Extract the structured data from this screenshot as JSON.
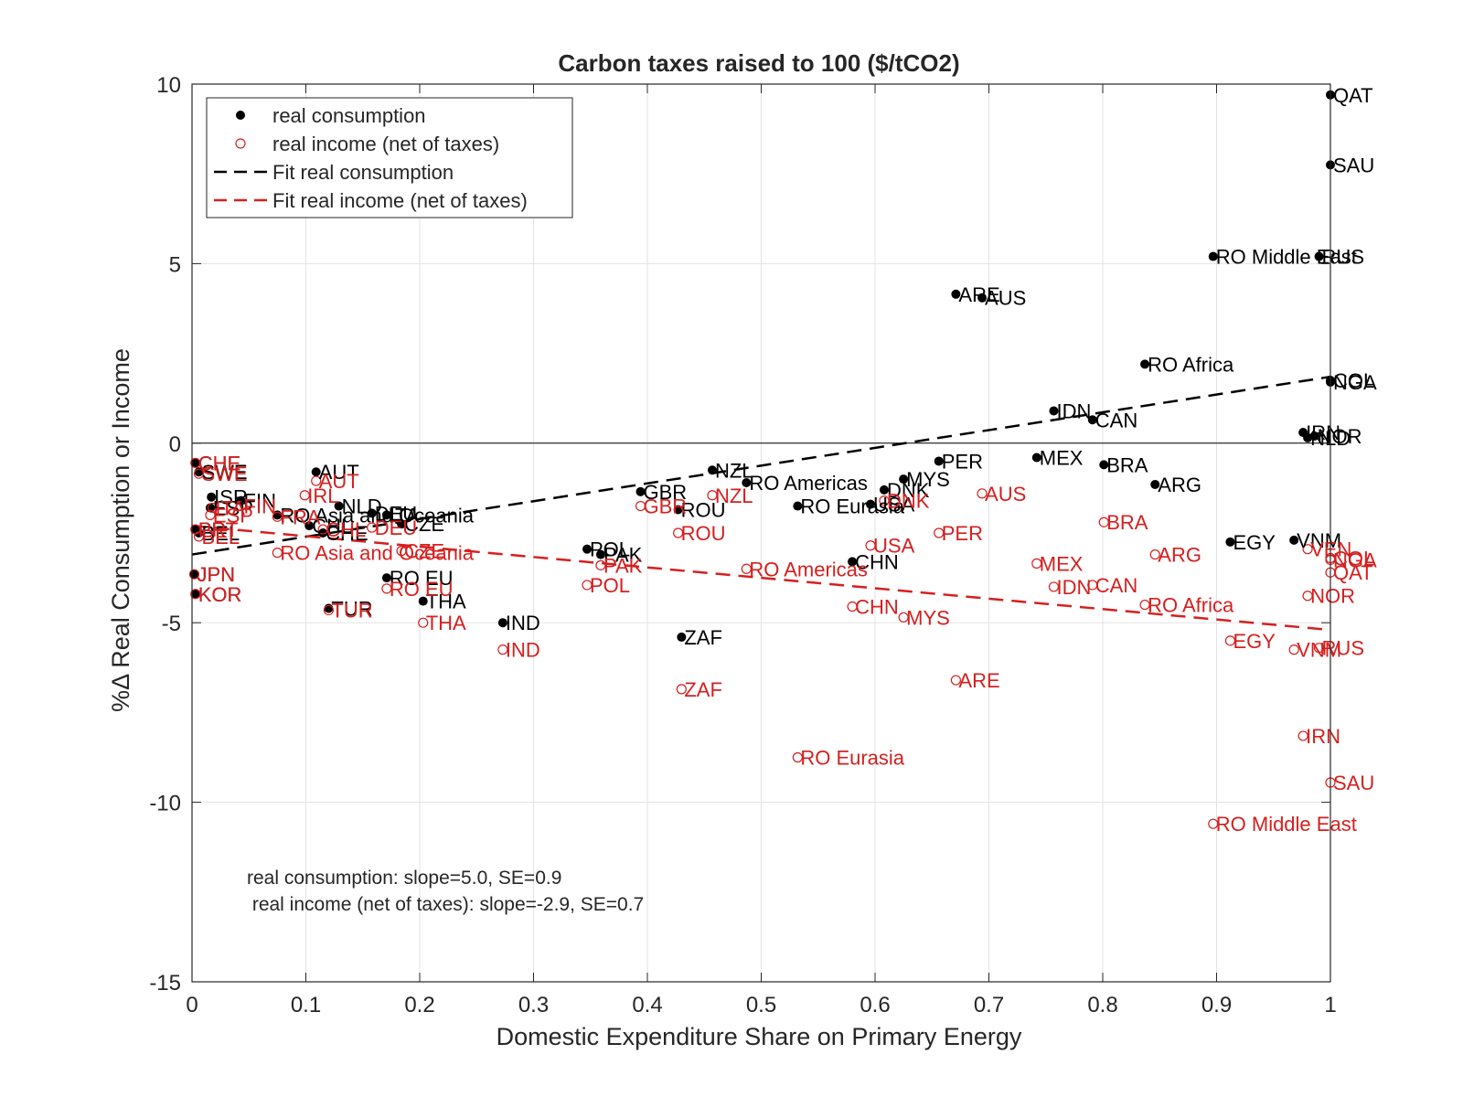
{
  "chart_data": {
    "type": "scatter",
    "title": "Carbon taxes raised to 100 ($/tCO2)",
    "xlabel": "Domestic Expenditure Share on Primary Energy",
    "ylabel": "%Δ Real Consumption or Income",
    "xlim": [
      0,
      1
    ],
    "ylim": [
      -15,
      10
    ],
    "xticks": [
      0,
      0.1,
      0.2,
      0.3,
      0.4,
      0.5,
      0.6,
      0.7,
      0.8,
      0.9,
      1
    ],
    "xtick_labels": [
      "0",
      "0.1",
      "0.2",
      "0.3",
      "0.4",
      "0.5",
      "0.6",
      "0.7",
      "0.8",
      "0.9",
      "1"
    ],
    "yticks": [
      10,
      5,
      0,
      -5,
      -10,
      -15
    ],
    "ytick_labels": [
      "10",
      "5",
      "0",
      "-5",
      "-10",
      "-15"
    ],
    "grid": true,
    "legend_position": "top-left",
    "colors": {
      "consumption": "#000000",
      "income": "#d61f1f"
    },
    "legend": [
      {
        "key": "consumption",
        "label": "real consumption",
        "marker": "filled-dot"
      },
      {
        "key": "income",
        "label": "real income (net of taxes)",
        "marker": "open-circle"
      },
      {
        "key": "fit_consumption",
        "label": "Fit real consumption",
        "marker": "dashed-line"
      },
      {
        "key": "fit_income",
        "label": "Fit real income (net of taxes)",
        "marker": "dashed-line"
      }
    ],
    "fits": {
      "consumption": {
        "x": [
          0,
          1
        ],
        "y": [
          -3.1,
          1.85
        ]
      },
      "income": {
        "x": [
          0,
          1
        ],
        "y": [
          -2.3,
          -5.2
        ]
      }
    },
    "annotations": [
      "real consumption: slope=5.0, SE=0.9",
      " real income (net of taxes): slope=-2.9, SE=0.7"
    ],
    "series": [
      {
        "name": "real consumption",
        "points": [
          {
            "x": 1.0,
            "y": 9.7,
            "label": "QAT"
          },
          {
            "x": 1.0,
            "y": 7.75,
            "label": "SAU"
          },
          {
            "x": 0.897,
            "y": 5.2,
            "label": "RO Middle East"
          },
          {
            "x": 0.99,
            "y": 5.2,
            "label": "RUS"
          },
          {
            "x": 0.671,
            "y": 4.15,
            "label": "ARE"
          },
          {
            "x": 0.694,
            "y": 4.05,
            "label": "AUS"
          },
          {
            "x": 0.837,
            "y": 2.2,
            "label": "RO Africa"
          },
          {
            "x": 1.0,
            "y": 1.75,
            "label": "COL"
          },
          {
            "x": 1.0,
            "y": 1.7,
            "label": "NGA"
          },
          {
            "x": 0.757,
            "y": 0.9,
            "label": "IDN"
          },
          {
            "x": 0.791,
            "y": 0.65,
            "label": "CAN"
          },
          {
            "x": 0.976,
            "y": 0.3,
            "label": "IRN"
          },
          {
            "x": 0.986,
            "y": 0.2,
            "label": "NOR"
          },
          {
            "x": 0.98,
            "y": 0.15,
            "label": "NLD"
          },
          {
            "x": 0.742,
            "y": -0.4,
            "label": "MEX"
          },
          {
            "x": 0.656,
            "y": -0.5,
            "label": "PER"
          },
          {
            "x": 0.801,
            "y": -0.6,
            "label": "BRA"
          },
          {
            "x": 0.846,
            "y": -1.15,
            "label": "ARG"
          },
          {
            "x": 0.625,
            "y": -1.0,
            "label": "MYS"
          },
          {
            "x": 0.608,
            "y": -1.3,
            "label": "DNK"
          },
          {
            "x": 0.457,
            "y": -0.75,
            "label": "NZL"
          },
          {
            "x": 0.487,
            "y": -1.1,
            "label": "RO Americas"
          },
          {
            "x": 0.394,
            "y": -1.35,
            "label": "GBR"
          },
          {
            "x": 0.427,
            "y": -1.85,
            "label": "ROU"
          },
          {
            "x": 0.532,
            "y": -1.75,
            "label": "RO Eurasia"
          },
          {
            "x": 0.596,
            "y": -1.7,
            "label": "USA"
          },
          {
            "x": 0.58,
            "y": -3.3,
            "label": "CHN"
          },
          {
            "x": 0.347,
            "y": -2.95,
            "label": "POL"
          },
          {
            "x": 0.359,
            "y": -3.1,
            "label": "PAK"
          },
          {
            "x": 0.203,
            "y": -4.4,
            "label": "THA"
          },
          {
            "x": 0.273,
            "y": -5.0,
            "label": "IND"
          },
          {
            "x": 0.43,
            "y": -5.4,
            "label": "ZAF"
          },
          {
            "x": 0.912,
            "y": -2.75,
            "label": "EGY"
          },
          {
            "x": 0.968,
            "y": -2.7,
            "label": "VNM"
          },
          {
            "x": 0.109,
            "y": -0.8,
            "label": "AUT"
          },
          {
            "x": 0.129,
            "y": -1.75,
            "label": "NLD"
          },
          {
            "x": 0.043,
            "y": -1.6,
            "label": "FIN"
          },
          {
            "x": 0.017,
            "y": -1.5,
            "label": "ISR"
          },
          {
            "x": 0.016,
            "y": -1.8,
            "label": "ESP"
          },
          {
            "x": 0.075,
            "y": -2.0,
            "label": "RO Asia and Oceania"
          },
          {
            "x": 0.158,
            "y": -1.95,
            "label": "DEU"
          },
          {
            "x": 0.171,
            "y": -2.0,
            "label": "ITA"
          },
          {
            "x": 0.184,
            "y": -2.25,
            "label": "CZE"
          },
          {
            "x": 0.103,
            "y": -2.3,
            "label": "CHL"
          },
          {
            "x": 0.115,
            "y": -2.5,
            "label": "CHE"
          },
          {
            "x": 0.171,
            "y": -3.75,
            "label": "RO EU"
          },
          {
            "x": 0.12,
            "y": -4.6,
            "label": "TUR"
          },
          {
            "x": 0.003,
            "y": -0.55,
            "label": "CHE"
          },
          {
            "x": 0.006,
            "y": -0.8,
            "label": "SWE"
          },
          {
            "x": 0.003,
            "y": -2.4,
            "label": "PRT"
          },
          {
            "x": 0.006,
            "y": -2.5,
            "label": "BEL"
          },
          {
            "x": 0.002,
            "y": -3.65,
            "label": "JPN"
          },
          {
            "x": 0.003,
            "y": -4.2,
            "label": "KOR"
          }
        ]
      },
      {
        "name": "real income (net of taxes)",
        "points": [
          {
            "x": 0.003,
            "y": -0.55,
            "label": "CHE"
          },
          {
            "x": 0.006,
            "y": -0.85,
            "label": "SWE"
          },
          {
            "x": 0.109,
            "y": -1.05,
            "label": "AUT"
          },
          {
            "x": 0.099,
            "y": -1.45,
            "label": "IRL"
          },
          {
            "x": 0.043,
            "y": -1.75,
            "label": "FIN"
          },
          {
            "x": 0.018,
            "y": -1.8,
            "label": "ITA"
          },
          {
            "x": 0.016,
            "y": -2.0,
            "label": "ESP"
          },
          {
            "x": 0.075,
            "y": -2.05,
            "label": "FRA"
          },
          {
            "x": 0.115,
            "y": -2.4,
            "label": "CHL"
          },
          {
            "x": 0.158,
            "y": -2.35,
            "label": "DEU"
          },
          {
            "x": 0.003,
            "y": -2.4,
            "label": "PRT"
          },
          {
            "x": 0.006,
            "y": -2.6,
            "label": "BEL"
          },
          {
            "x": 0.075,
            "y": -3.05,
            "label": "RO Asia and Oceania"
          },
          {
            "x": 0.184,
            "y": -3.0,
            "label": "CZE"
          },
          {
            "x": 0.171,
            "y": -4.05,
            "label": "RO EU"
          },
          {
            "x": 0.12,
            "y": -4.65,
            "label": "TUR"
          },
          {
            "x": 0.203,
            "y": -5.0,
            "label": "THA"
          },
          {
            "x": 0.002,
            "y": -3.65,
            "label": "JPN"
          },
          {
            "x": 0.003,
            "y": -4.2,
            "label": "KOR"
          },
          {
            "x": 0.273,
            "y": -5.75,
            "label": "IND"
          },
          {
            "x": 0.43,
            "y": -6.85,
            "label": "ZAF"
          },
          {
            "x": 0.394,
            "y": -1.75,
            "label": "GBR"
          },
          {
            "x": 0.457,
            "y": -1.45,
            "label": "NZL"
          },
          {
            "x": 0.427,
            "y": -2.5,
            "label": "ROU"
          },
          {
            "x": 0.359,
            "y": -3.4,
            "label": "PAK"
          },
          {
            "x": 0.347,
            "y": -3.95,
            "label": "POL"
          },
          {
            "x": 0.487,
            "y": -3.5,
            "label": "RO Americas"
          },
          {
            "x": 0.532,
            "y": -8.75,
            "label": "RO Eurasia"
          },
          {
            "x": 0.596,
            "y": -2.85,
            "label": "USA"
          },
          {
            "x": 0.58,
            "y": -4.55,
            "label": "CHN"
          },
          {
            "x": 0.625,
            "y": -4.85,
            "label": "MYS"
          },
          {
            "x": 0.608,
            "y": -1.6,
            "label": "DNK"
          },
          {
            "x": 0.656,
            "y": -2.5,
            "label": "PER"
          },
          {
            "x": 0.694,
            "y": -1.4,
            "label": "AUS"
          },
          {
            "x": 0.671,
            "y": -6.6,
            "label": "ARE"
          },
          {
            "x": 0.742,
            "y": -3.35,
            "label": "MEX"
          },
          {
            "x": 0.757,
            "y": -4.0,
            "label": "IDN"
          },
          {
            "x": 0.791,
            "y": -3.95,
            "label": "CAN"
          },
          {
            "x": 0.801,
            "y": -2.2,
            "label": "BRA"
          },
          {
            "x": 0.846,
            "y": -3.1,
            "label": "ARG"
          },
          {
            "x": 0.837,
            "y": -4.5,
            "label": "RO Africa"
          },
          {
            "x": 0.912,
            "y": -5.5,
            "label": "EGY"
          },
          {
            "x": 0.968,
            "y": -5.75,
            "label": "VNM"
          },
          {
            "x": 0.99,
            "y": -5.7,
            "label": "RUS"
          },
          {
            "x": 0.98,
            "y": -2.95,
            "label": "VEN"
          },
          {
            "x": 1.0,
            "y": -3.2,
            "label": "COL"
          },
          {
            "x": 1.0,
            "y": -3.25,
            "label": "NGA"
          },
          {
            "x": 1.0,
            "y": -3.6,
            "label": "QAT"
          },
          {
            "x": 0.98,
            "y": -4.25,
            "label": "NOR"
          },
          {
            "x": 0.976,
            "y": -8.15,
            "label": "IRN"
          },
          {
            "x": 1.0,
            "y": -9.45,
            "label": "SAU"
          },
          {
            "x": 0.897,
            "y": -10.6,
            "label": "RO Middle East"
          }
        ]
      }
    ]
  }
}
